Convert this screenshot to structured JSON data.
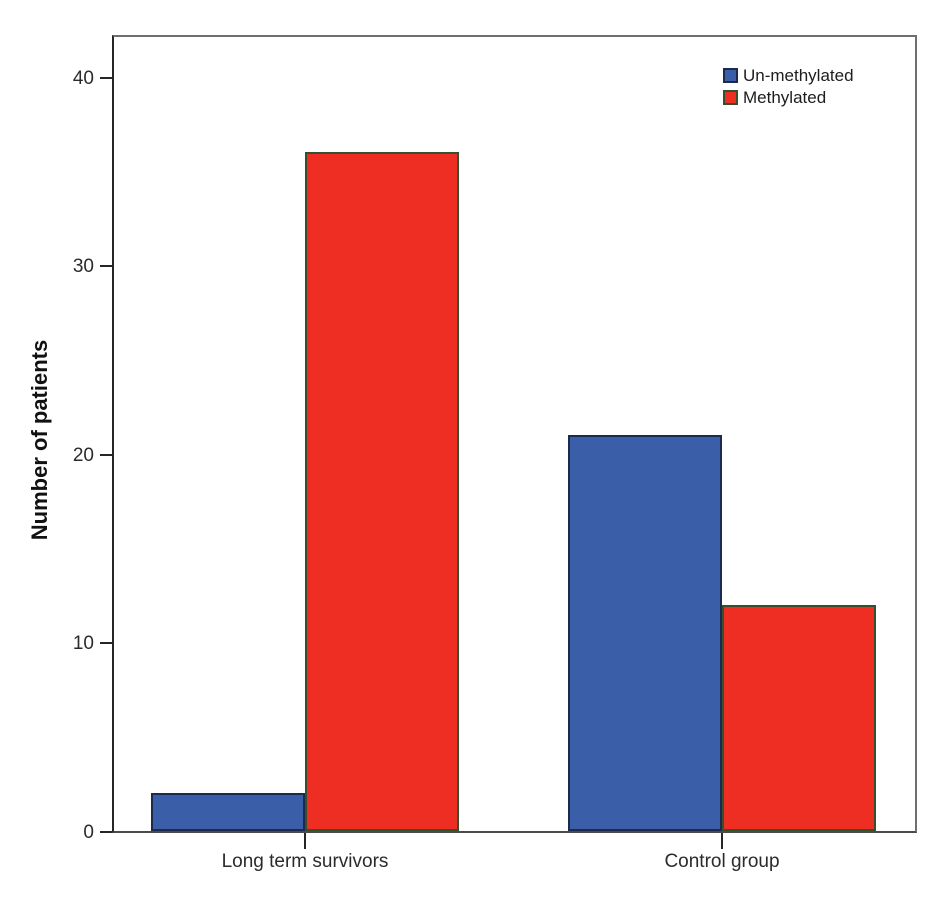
{
  "chart_data": {
    "type": "bar",
    "title": "",
    "xlabel": "",
    "ylabel": "Number of patients",
    "categories": [
      "Long term survivors",
      "Control group"
    ],
    "series": [
      {
        "name": "Un-methylated",
        "values": [
          2,
          21
        ],
        "color": "#3b5ea9",
        "border_color": "#1b2a4d"
      },
      {
        "name": "Methylated",
        "values": [
          36,
          12
        ],
        "color": "#ee2e23",
        "border_color": "#35502f"
      }
    ],
    "yticks": [
      0,
      10,
      20,
      30,
      40
    ],
    "ylim": [
      0,
      42.33
    ],
    "grid": false,
    "legend_position": "top-right-inside",
    "colors": {
      "frame": "#6f6f6f",
      "axis": "#262626",
      "tick_text": "#2b2b2b"
    }
  }
}
